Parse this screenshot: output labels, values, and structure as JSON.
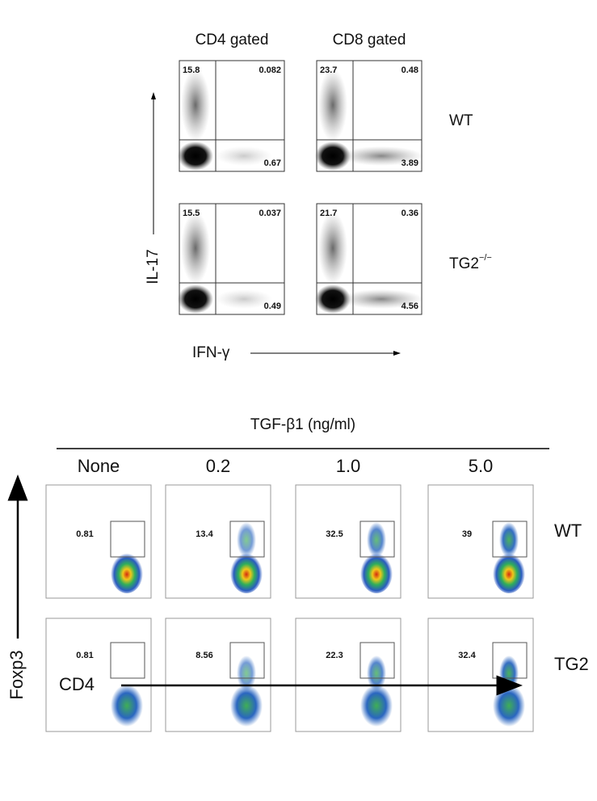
{
  "top": {
    "columns": [
      "CD4 gated",
      "CD8 gated"
    ],
    "rows": [
      {
        "label": "WT",
        "panels": [
          {
            "ul": 15.8,
            "ur": 0.082,
            "lr": 0.67
          },
          {
            "ul": 23.7,
            "ur": 0.48,
            "lr": 3.89
          }
        ]
      },
      {
        "label": "TG2",
        "label_sup": "−/−",
        "panels": [
          {
            "ul": 15.5,
            "ur": 0.037,
            "lr": 0.49
          },
          {
            "ul": 21.7,
            "ur": 0.36,
            "lr": 4.56
          }
        ]
      }
    ],
    "y_axis": "IL-17",
    "x_axis": "IFN-γ"
  },
  "bottom": {
    "title": "TGF-β1 (ng/ml)",
    "columns": [
      "None",
      "0.2",
      "1.0",
      "5.0"
    ],
    "rows": [
      {
        "label": "WT",
        "values": [
          0.81,
          13.4,
          32.5,
          39
        ]
      },
      {
        "label": "TG2",
        "values": [
          0.81,
          8.56,
          22.3,
          32.4
        ]
      }
    ],
    "y_axis": "Foxp3",
    "x_axis": "CD4"
  }
}
